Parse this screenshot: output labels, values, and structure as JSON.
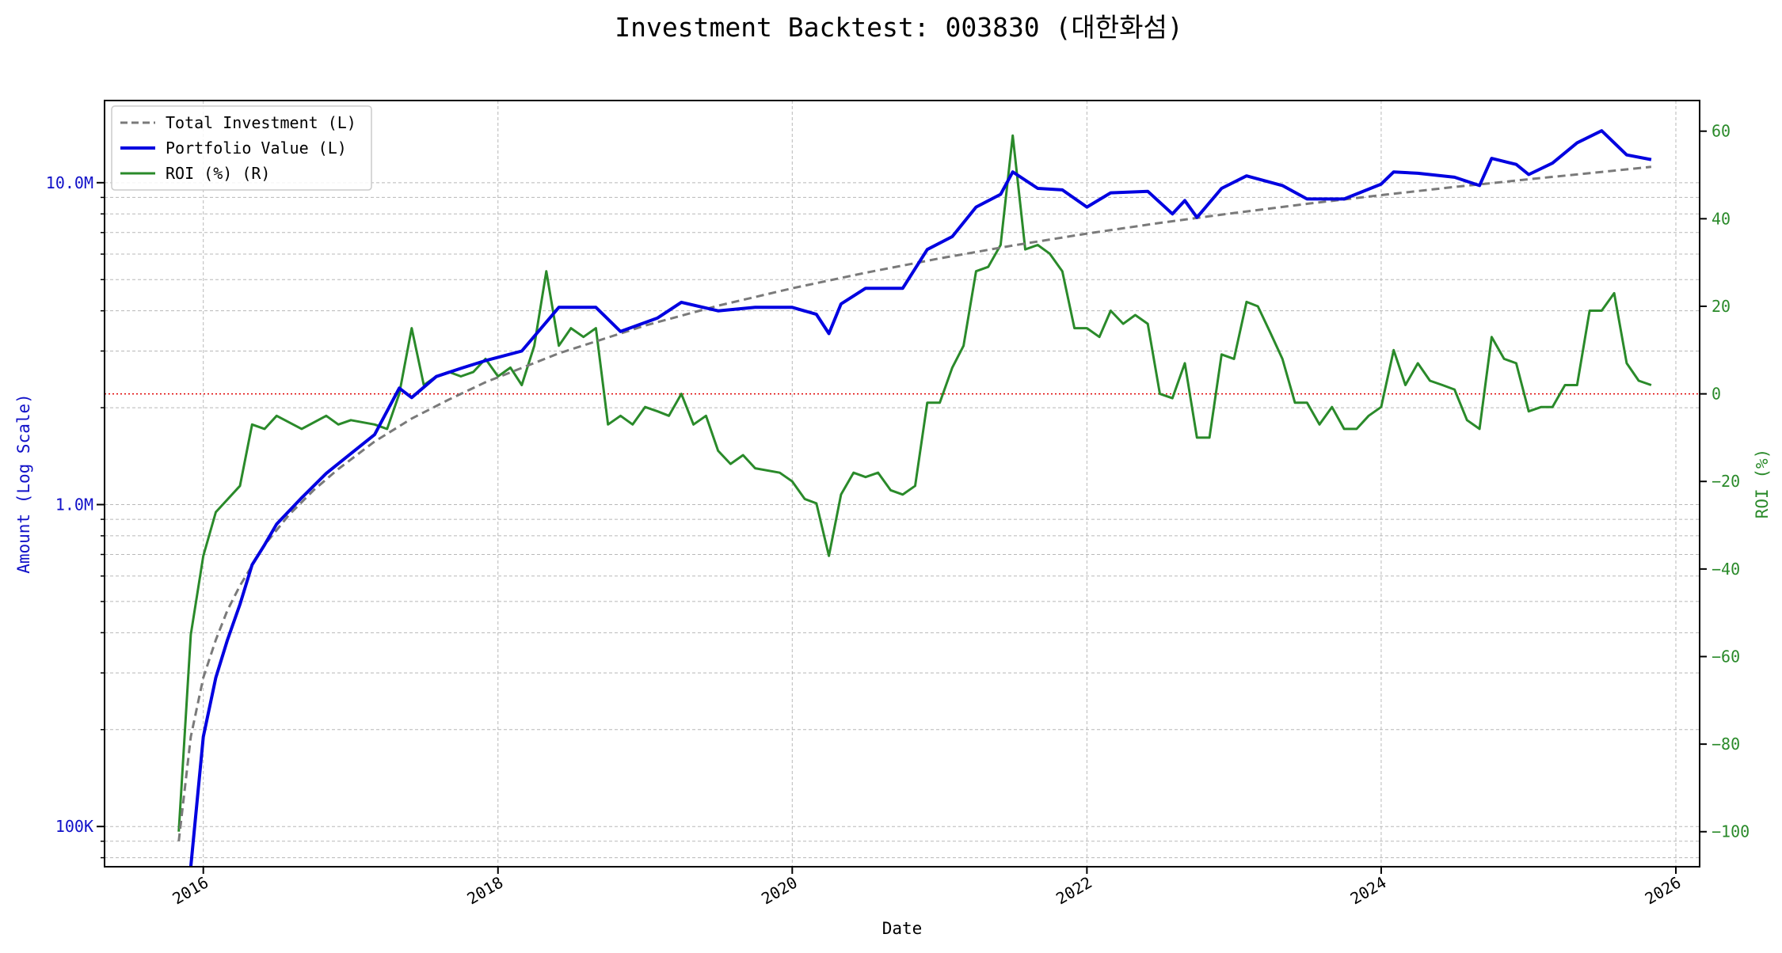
{
  "chart_data": {
    "type": "line",
    "title": "Investment Backtest: 003830 (대한화섬)",
    "xlabel": "Date",
    "ylabel_left": "Amount (Log Scale)",
    "ylabel_right": "ROI (%)",
    "left_axis_scale": "log",
    "grid": true,
    "legend_position": "top-left",
    "xlim": [
      "2015-05-01",
      "2026-03-01"
    ],
    "ylim_left": [
      75000,
      18000000
    ],
    "ylim_right": [
      -108,
      67
    ],
    "x_ticks": [
      {
        "date": "2016-01-01",
        "label": "2016"
      },
      {
        "date": "2018-01-01",
        "label": "2018"
      },
      {
        "date": "2020-01-01",
        "label": "2020"
      },
      {
        "date": "2022-01-01",
        "label": "2022"
      },
      {
        "date": "2024-01-01",
        "label": "2024"
      },
      {
        "date": "2026-01-01",
        "label": "2026"
      }
    ],
    "left_ticks": [
      {
        "value": 100000,
        "label": "100K"
      },
      {
        "value": 1000000,
        "label": "1.0M"
      },
      {
        "value": 10000000,
        "label": "10.0M"
      }
    ],
    "right_ticks": [
      {
        "value": 60,
        "label": "60"
      },
      {
        "value": 40,
        "label": "40"
      },
      {
        "value": 20,
        "label": "20"
      },
      {
        "value": 0,
        "label": "0"
      },
      {
        "value": -20,
        "label": "−20"
      },
      {
        "value": -40,
        "label": "−40"
      },
      {
        "value": -60,
        "label": "−60"
      },
      {
        "value": -80,
        "label": "−80"
      },
      {
        "value": -100,
        "label": "−100"
      }
    ],
    "reference_line": {
      "axis": "right",
      "value": 0,
      "color": "#e00000",
      "style": "dotted"
    },
    "colors": {
      "left_axis": "#1010c8",
      "right_axis": "#2a8a2a",
      "total_investment": "#7a7a7a",
      "portfolio_value": "#0000e0",
      "roi": "#2a8a2a"
    },
    "series": [
      {
        "name": "Total Investment (L)",
        "axis": "left",
        "style": "dashed",
        "x": [
          "2015-11-01",
          "2015-12-01",
          "2016-01-01",
          "2016-02-01",
          "2016-03-01",
          "2016-04-01",
          "2016-06-01",
          "2016-08-01",
          "2016-10-01",
          "2016-12-01",
          "2017-03-01",
          "2017-06-01",
          "2017-09-01",
          "2017-12-01",
          "2018-06-01",
          "2019-01-01",
          "2019-07-01",
          "2020-01-01",
          "2020-07-01",
          "2021-01-01",
          "2021-07-01",
          "2022-01-01",
          "2022-07-01",
          "2023-01-01",
          "2023-07-01",
          "2024-01-01",
          "2024-07-01",
          "2025-01-01",
          "2025-07-01",
          "2025-11-01"
        ],
        "values": [
          90000,
          190000,
          290000,
          380000,
          470000,
          560000,
          750000,
          930000,
          1110000,
          1290000,
          1570000,
          1850000,
          2120000,
          2400000,
          2950000,
          3600000,
          4150000,
          4700000,
          5250000,
          5820000,
          6380000,
          6950000,
          7500000,
          8050000,
          8600000,
          9150000,
          9700000,
          10250000,
          10800000,
          11200000
        ]
      },
      {
        "name": "Portfolio Value (L)",
        "axis": "left",
        "style": "solid",
        "x": [
          "2015-12-01",
          "2016-01-01",
          "2016-02-01",
          "2016-03-01",
          "2016-04-01",
          "2016-05-01",
          "2016-06-01",
          "2016-07-01",
          "2016-09-01",
          "2016-11-01",
          "2017-01-01",
          "2017-03-01",
          "2017-05-01",
          "2017-06-01",
          "2017-08-01",
          "2017-10-01",
          "2017-12-01",
          "2018-03-01",
          "2018-06-01",
          "2018-09-01",
          "2018-11-01",
          "2019-02-01",
          "2019-04-01",
          "2019-07-01",
          "2019-10-01",
          "2020-01-01",
          "2020-03-01",
          "2020-04-01",
          "2020-05-01",
          "2020-07-01",
          "2020-10-01",
          "2020-12-01",
          "2021-02-01",
          "2021-04-01",
          "2021-06-01",
          "2021-07-01",
          "2021-09-01",
          "2021-11-01",
          "2022-01-01",
          "2022-03-01",
          "2022-06-01",
          "2022-08-01",
          "2022-09-01",
          "2022-10-01",
          "2022-12-01",
          "2023-02-01",
          "2023-05-01",
          "2023-07-01",
          "2023-10-01",
          "2024-01-01",
          "2024-02-01",
          "2024-04-01",
          "2024-07-01",
          "2024-09-01",
          "2024-10-01",
          "2024-12-01",
          "2025-01-01",
          "2025-03-01",
          "2025-05-01",
          "2025-07-01",
          "2025-09-01",
          "2025-11-01"
        ],
        "values": [
          75000,
          190000,
          290000,
          380000,
          490000,
          650000,
          750000,
          870000,
          1050000,
          1250000,
          1440000,
          1650000,
          2300000,
          2150000,
          2500000,
          2650000,
          2800000,
          3000000,
          4100000,
          4100000,
          3450000,
          3800000,
          4250000,
          4000000,
          4100000,
          4100000,
          3900000,
          3400000,
          4200000,
          4700000,
          4700000,
          6200000,
          6800000,
          8400000,
          9200000,
          10800000,
          9600000,
          9500000,
          8400000,
          9300000,
          9400000,
          8000000,
          8800000,
          7800000,
          9600000,
          10500000,
          9800000,
          8900000,
          8900000,
          9900000,
          10800000,
          10700000,
          10400000,
          9800000,
          11900000,
          11400000,
          10600000,
          11500000,
          13300000,
          14500000,
          12200000,
          11800000
        ]
      },
      {
        "name": "ROI (%) (R)",
        "axis": "right",
        "style": "solid",
        "x": [
          "2015-11-01",
          "2015-12-01",
          "2016-01-01",
          "2016-02-01",
          "2016-04-01",
          "2016-05-01",
          "2016-06-01",
          "2016-07-01",
          "2016-09-01",
          "2016-11-01",
          "2016-12-01",
          "2017-01-01",
          "2017-03-01",
          "2017-04-01",
          "2017-05-01",
          "2017-06-01",
          "2017-07-01",
          "2017-08-01",
          "2017-09-01",
          "2017-10-01",
          "2017-11-01",
          "2017-12-01",
          "2018-01-01",
          "2018-02-01",
          "2018-03-01",
          "2018-04-01",
          "2018-05-01",
          "2018-06-01",
          "2018-07-01",
          "2018-08-01",
          "2018-09-01",
          "2018-10-01",
          "2018-11-01",
          "2018-12-01",
          "2019-01-01",
          "2019-02-01",
          "2019-03-01",
          "2019-04-01",
          "2019-05-01",
          "2019-06-01",
          "2019-07-01",
          "2019-08-01",
          "2019-09-01",
          "2019-10-01",
          "2019-12-01",
          "2020-01-01",
          "2020-02-01",
          "2020-03-01",
          "2020-04-01",
          "2020-05-01",
          "2020-06-01",
          "2020-07-01",
          "2020-08-01",
          "2020-09-01",
          "2020-10-01",
          "2020-11-01",
          "2020-12-01",
          "2021-01-01",
          "2021-02-01",
          "2021-03-01",
          "2021-04-01",
          "2021-05-01",
          "2021-06-01",
          "2021-07-01",
          "2021-08-01",
          "2021-09-01",
          "2021-10-01",
          "2021-11-01",
          "2021-12-01",
          "2022-01-01",
          "2022-02-01",
          "2022-03-01",
          "2022-04-01",
          "2022-05-01",
          "2022-06-01",
          "2022-07-01",
          "2022-08-01",
          "2022-09-01",
          "2022-10-01",
          "2022-11-01",
          "2022-12-01",
          "2023-01-01",
          "2023-02-01",
          "2023-03-01",
          "2023-04-01",
          "2023-05-01",
          "2023-06-01",
          "2023-07-01",
          "2023-08-01",
          "2023-09-01",
          "2023-10-01",
          "2023-11-01",
          "2023-12-01",
          "2024-01-01",
          "2024-02-01",
          "2024-03-01",
          "2024-04-01",
          "2024-05-01",
          "2024-06-01",
          "2024-07-01",
          "2024-08-01",
          "2024-09-01",
          "2024-10-01",
          "2024-11-01",
          "2024-12-01",
          "2025-01-01",
          "2025-02-01",
          "2025-03-01",
          "2025-04-01",
          "2025-05-01",
          "2025-06-01",
          "2025-07-01",
          "2025-08-01",
          "2025-09-01",
          "2025-10-01",
          "2025-11-01"
        ],
        "values": [
          -100,
          -55,
          -37,
          -27,
          -21,
          -7,
          -8,
          -5,
          -8,
          -5,
          -7,
          -6,
          -7,
          -8,
          0,
          15,
          2,
          4,
          5,
          4,
          5,
          8,
          4,
          6,
          2,
          11,
          28,
          11,
          15,
          13,
          15,
          -7,
          -5,
          -7,
          -3,
          -4,
          -5,
          0,
          -7,
          -5,
          -13,
          -16,
          -14,
          -17,
          -18,
          -20,
          -24,
          -25,
          -37,
          -23,
          -18,
          -19,
          -18,
          -22,
          -23,
          -21,
          -2,
          -2,
          6,
          11,
          28,
          29,
          34,
          59,
          33,
          34,
          32,
          28,
          15,
          15,
          13,
          19,
          16,
          18,
          16,
          0,
          -1,
          7,
          -10,
          -10,
          9,
          8,
          21,
          20,
          14,
          8,
          -2,
          -2,
          -7,
          -3,
          -8,
          -8,
          -5,
          -3,
          10,
          2,
          7,
          3,
          2,
          1,
          -6,
          -8,
          13,
          8,
          7,
          -4,
          -3,
          -3,
          2,
          2,
          19,
          19,
          23,
          7,
          3,
          2
        ]
      }
    ]
  }
}
